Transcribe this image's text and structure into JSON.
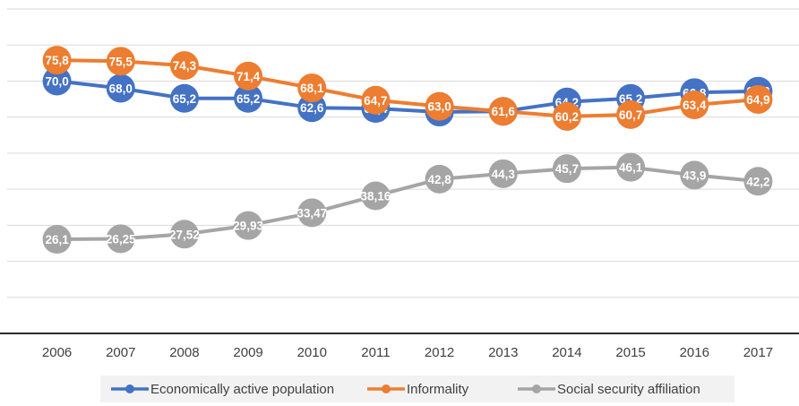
{
  "chart_data": {
    "type": "line",
    "title": "",
    "xlabel": "",
    "ylabel": "",
    "ylim": [
      0,
      90
    ],
    "grid": true,
    "legend_position": "bottom",
    "categories": [
      "2006",
      "2007",
      "2008",
      "2009",
      "2010",
      "2011",
      "2012",
      "2013",
      "2014",
      "2015",
      "2016",
      "2017"
    ],
    "series": [
      {
        "name": "Economically active population",
        "color": "#4472c4",
        "values": [
          70.0,
          68.0,
          65.2,
          65.2,
          62.6,
          62.4,
          61.4,
          61.6,
          64.2,
          65.2,
          66.8,
          67.2
        ],
        "labels": [
          "70,0",
          "68,0",
          "65,2",
          "65,2",
          "62,6",
          "62,4",
          "61,4",
          "61,6",
          "64,2",
          "65,2",
          "66,8",
          "67,2"
        ]
      },
      {
        "name": "Informality",
        "color": "#ed7d31",
        "values": [
          75.8,
          75.5,
          74.3,
          71.4,
          68.1,
          64.7,
          63.0,
          61.6,
          60.2,
          60.7,
          63.4,
          64.9
        ],
        "labels": [
          "75,8",
          "75,5",
          "74,3",
          "71,4",
          "68,1",
          "64,7",
          "63,0",
          "61,6",
          "60,2",
          "60,7",
          "63,4",
          "64,9"
        ]
      },
      {
        "name": "Social security affiliation",
        "color": "#a5a5a5",
        "values": [
          26.1,
          26.25,
          27.52,
          29.93,
          33.47,
          38.16,
          42.8,
          44.3,
          45.7,
          46.1,
          43.9,
          42.2
        ],
        "labels": [
          "26,1",
          "26,25",
          "27,52",
          "29,93",
          "33,47",
          "38,16",
          "42,8",
          "44,3",
          "45,7",
          "46,1",
          "43,9",
          "42,2"
        ]
      }
    ]
  }
}
